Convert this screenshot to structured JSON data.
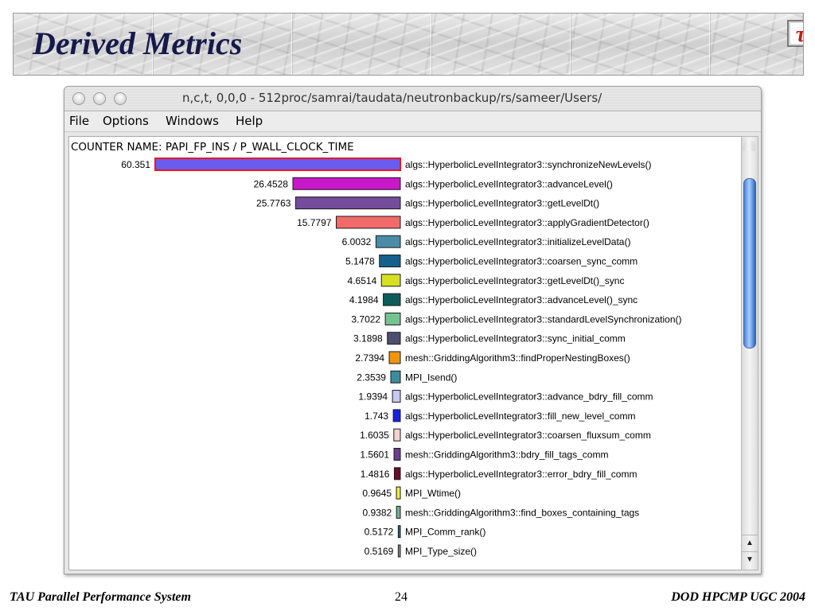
{
  "slide": {
    "title": "Derived Metrics",
    "footer_left": "TAU Parallel Performance System",
    "page_number": "24",
    "footer_right": "DOD HPCMP UGC 2004",
    "logo_symbol": "τ",
    "logo_icon": "tau-logo-icon"
  },
  "window": {
    "title": "n,c,t, 0,0,0 - 512proc/samrai/taudata/neutronbackup/rs/sameer/Users/",
    "menu": [
      "File",
      "Options",
      "Windows",
      "Help"
    ]
  },
  "chart_data": {
    "type": "bar",
    "orientation": "horizontal",
    "header": "COUNTER NAME: PAPI_FP_INS / P_WALL_CLOCK_TIME",
    "value_labels": [
      "60.351",
      "26.4528",
      "25.7763",
      "15.7797",
      "6.0032",
      "5.1478",
      "4.6514",
      "4.1984",
      "3.7022",
      "3.1898",
      "2.7394",
      "2.3539",
      "1.9394",
      "1.743",
      "1.6035",
      "1.5601",
      "1.4816",
      "0.9645",
      "0.9382",
      "0.5172",
      "0.5169"
    ],
    "values": [
      60.351,
      26.4528,
      25.7763,
      15.7797,
      6.0032,
      5.1478,
      4.6514,
      4.1984,
      3.7022,
      3.1898,
      2.7394,
      2.3539,
      1.9394,
      1.743,
      1.6035,
      1.5601,
      1.4816,
      0.9645,
      0.9382,
      0.5172,
      0.5169
    ],
    "categories": [
      "algs::HyperbolicLevelIntegrator3::synchronizeNewLevels()",
      "algs::HyperbolicLevelIntegrator3::advanceLevel()",
      "algs::HyperbolicLevelIntegrator3::getLevelDt()",
      "algs::HyperbolicLevelIntegrator3::applyGradientDetector()",
      "algs::HyperbolicLevelIntegrator3::initializeLevelData()",
      "algs::HyperbolicLevelIntegrator3::coarsen_sync_comm",
      "algs::HyperbolicLevelIntegrator3::getLevelDt()_sync",
      "algs::HyperbolicLevelIntegrator3::advanceLevel()_sync",
      "algs::HyperbolicLevelIntegrator3::standardLevelSynchronization()",
      "algs::HyperbolicLevelIntegrator3::sync_initial_comm",
      "mesh::GriddingAlgorithm3::findProperNestingBoxes()",
      "MPI_Isend()",
      "algs::HyperbolicLevelIntegrator3::advance_bdry_fill_comm",
      "algs::HyperbolicLevelIntegrator3::fill_new_level_comm",
      "algs::HyperbolicLevelIntegrator3::coarsen_fluxsum_comm",
      "mesh::GriddingAlgorithm3::bdry_fill_tags_comm",
      "algs::HyperbolicLevelIntegrator3::error_bdry_fill_comm",
      "MPI_Wtime()",
      "mesh::GriddingAlgorithm3::find_boxes_containing_tags",
      "MPI_Comm_rank()",
      "MPI_Type_size()"
    ],
    "colors": [
      "#6a5cf0",
      "#c818c8",
      "#744c9c",
      "#f26a6a",
      "#4a8ca8",
      "#15608c",
      "#d8e024",
      "#0d5c5c",
      "#74c490",
      "#4e4e70",
      "#f0940c",
      "#3c8ca0",
      "#c8c8f4",
      "#1424e0",
      "#f8d0cc",
      "#6c3c90",
      "#680c28",
      "#ecf03c",
      "#74b490",
      "#1c6c8c",
      "#8c8c9c"
    ],
    "highlighted_index": 0,
    "highlight_color": "#e81818"
  }
}
